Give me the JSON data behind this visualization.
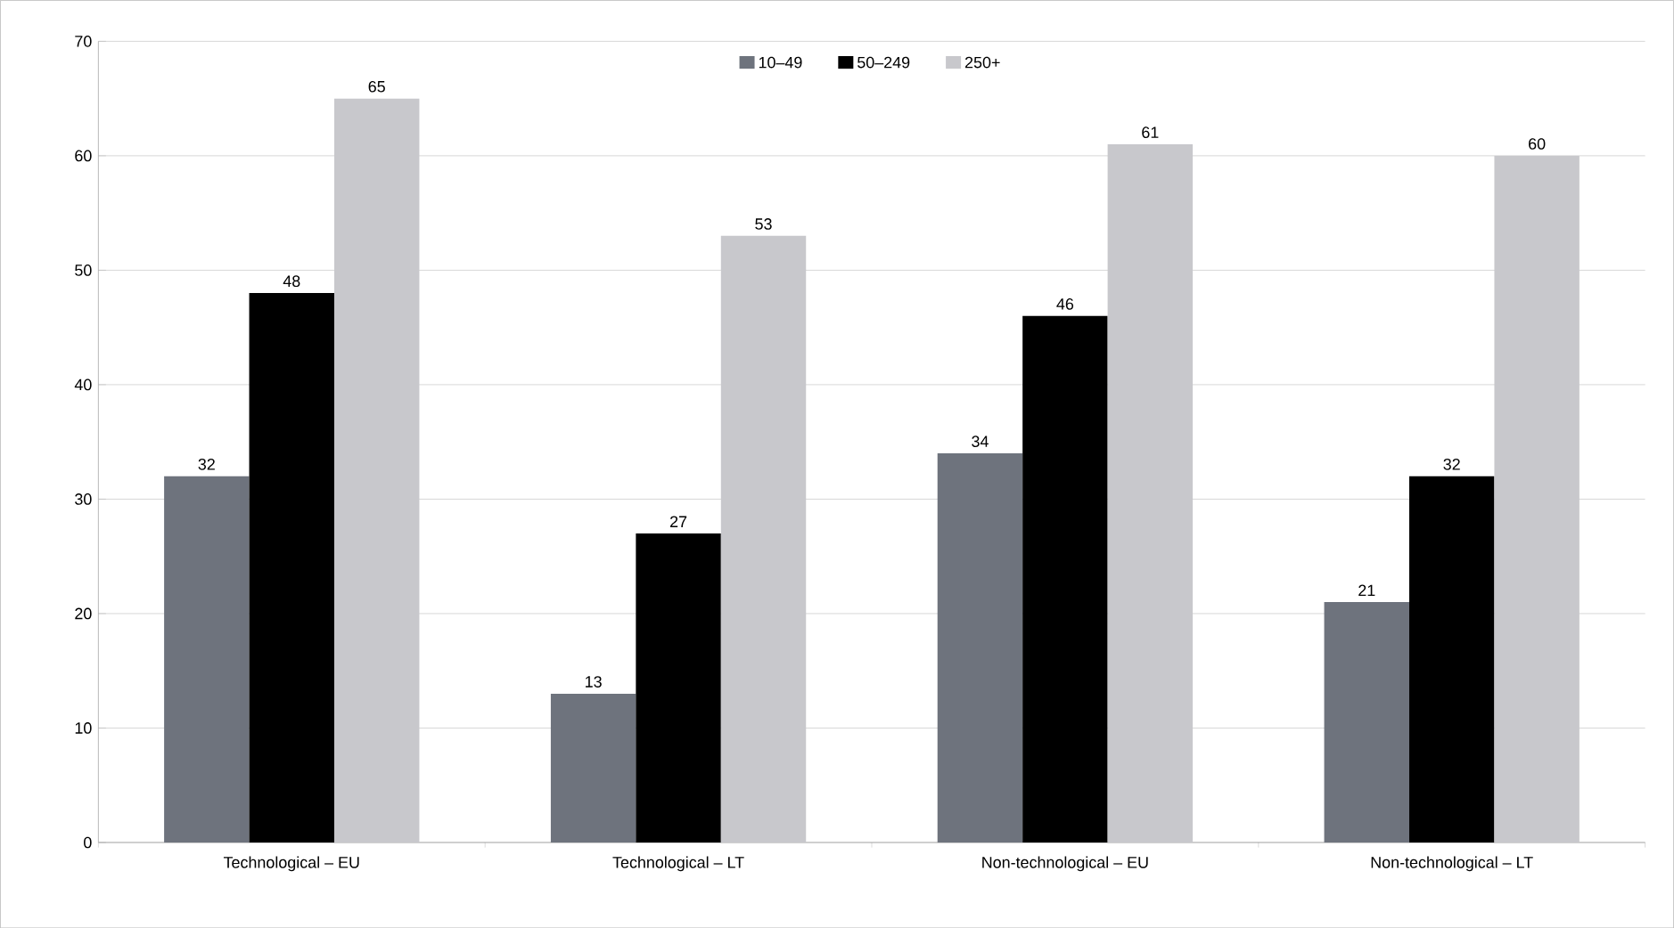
{
  "chart_data": {
    "type": "bar",
    "categories": [
      "Technological – EU",
      "Technological – LT",
      "Non-technological – EU",
      "Non-technological – LT"
    ],
    "series": [
      {
        "name": "10–49",
        "color": "#6e737d",
        "values": [
          32,
          13,
          34,
          21
        ]
      },
      {
        "name": "50–249",
        "color": "#000000",
        "values": [
          48,
          27,
          46,
          32
        ]
      },
      {
        "name": "250+",
        "color": "#c8c8cc",
        "values": [
          65,
          53,
          61,
          60
        ]
      }
    ],
    "ylim": [
      0,
      70
    ],
    "yticks": [
      0,
      10,
      20,
      30,
      40,
      50,
      60,
      70
    ],
    "grid": "y",
    "legend": "top",
    "data_labels": true
  }
}
